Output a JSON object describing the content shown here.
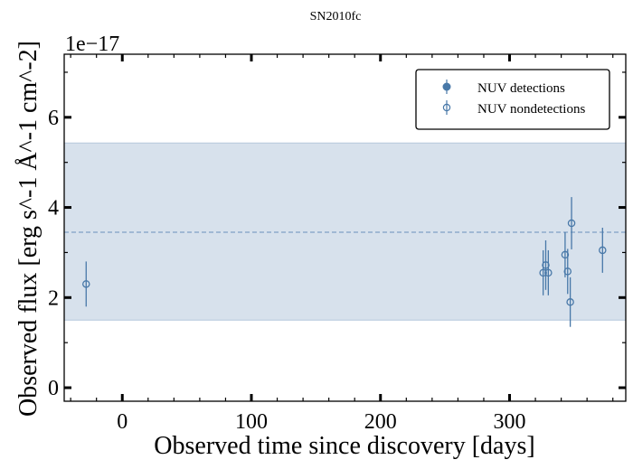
{
  "chart_data": {
    "type": "scatter",
    "title": "SN2010fc",
    "xlabel": "Observed time since discovery [days]",
    "ylabel": "Observed flux [erg s^-1 Å^-1 cm^-2]",
    "offset_text": "1e−17",
    "xlim": [
      -45,
      390
    ],
    "ylim": [
      -0.3,
      7.4
    ],
    "x_ticks": [
      0,
      100,
      200,
      300
    ],
    "y_ticks": [
      0,
      2,
      4,
      6
    ],
    "y_scale_factor": 1e-17,
    "grid": false,
    "legend_position": "top-right",
    "band": {
      "low": 1.5,
      "high": 5.43,
      "color": "#c9d7e6"
    },
    "mean_line": {
      "value": 3.45,
      "color": "#7fa1c6"
    },
    "series": [
      {
        "name": "NUV detections",
        "marker": "filled-circle",
        "color": "#4878a8",
        "points": []
      },
      {
        "name": "NUV nondetections",
        "marker": "open-circle",
        "color": "#4878a8",
        "points": [
          {
            "x": -28,
            "y": 2.3,
            "err": 0.5
          },
          {
            "x": 326,
            "y": 2.55,
            "err": 0.5
          },
          {
            "x": 328,
            "y": 2.72,
            "err": 0.55
          },
          {
            "x": 330,
            "y": 2.55,
            "err": 0.5
          },
          {
            "x": 343,
            "y": 2.95,
            "err": 0.5
          },
          {
            "x": 345,
            "y": 2.58,
            "err": 0.5
          },
          {
            "x": 347,
            "y": 1.9,
            "err": 0.55
          },
          {
            "x": 348,
            "y": 3.65,
            "err": 0.58
          },
          {
            "x": 372,
            "y": 3.05,
            "err": 0.5
          }
        ]
      }
    ]
  }
}
